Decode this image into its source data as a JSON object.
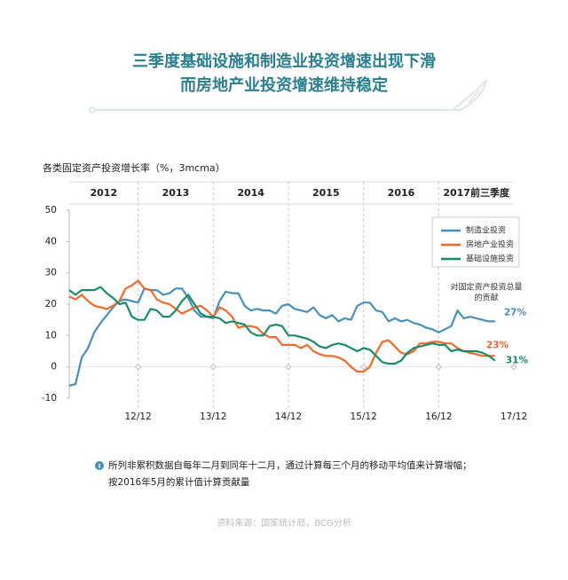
{
  "chart_data": {
    "type": "line",
    "title": "三季度基础设施和制造业投资增速出现下滑",
    "subtitle": "而房地产业投资增速维持稳定",
    "y_label": "各类固定资产投资增长率（%，3mcma）",
    "periods": [
      "2012",
      "2013",
      "2014",
      "2015",
      "2016",
      "2017前三季度"
    ],
    "x": [
      1,
      2,
      3,
      4,
      5,
      6,
      7,
      8,
      9,
      10,
      11,
      12,
      13,
      14,
      15,
      16,
      17,
      18,
      19,
      20,
      21,
      22,
      23,
      24,
      25,
      26,
      27,
      28,
      29,
      30,
      31,
      32,
      33,
      34,
      35,
      36,
      37,
      38,
      39,
      40,
      41,
      42,
      43,
      44,
      45,
      46,
      47,
      48,
      49,
      50,
      51,
      52,
      53,
      54,
      55,
      56,
      57,
      58,
      59,
      60,
      61,
      62,
      63,
      64,
      65,
      66,
      67,
      68,
      69
    ],
    "xlim": [
      1,
      72
    ],
    "xticks": [
      {
        "value": 12,
        "label": "12/12"
      },
      {
        "value": 24,
        "label": "13/12"
      },
      {
        "value": 36,
        "label": "14/12"
      },
      {
        "value": 48,
        "label": "15/12"
      },
      {
        "value": 60,
        "label": "16/12"
      },
      {
        "value": 72,
        "label": "17/12"
      }
    ],
    "ylim": [
      -10,
      50
    ],
    "yticks": [
      -10,
      0,
      10,
      20,
      30,
      40,
      50
    ],
    "grid": false,
    "legend": "upper right",
    "series": [
      {
        "name": "制造业投资",
        "color": "#4a8fb5",
        "end_label": "27%",
        "values": [
          -6,
          -5.5,
          3,
          6,
          11,
          14,
          16.5,
          19,
          21,
          21.5,
          21,
          20.5,
          25,
          24.5,
          24.5,
          23,
          23.5,
          25,
          25,
          22,
          18,
          16,
          16,
          15.5,
          21,
          24,
          23.5,
          23.5,
          19.5,
          18,
          18.5,
          18,
          18,
          17,
          19.5,
          20,
          18.5,
          18,
          17.5,
          19,
          16.5,
          15.5,
          16.5,
          14.5,
          15.5,
          15,
          19.5,
          20.5,
          20.5,
          18,
          17.5,
          14.5,
          15.5,
          14.5,
          15,
          14,
          13.5,
          12.5,
          12,
          11,
          12,
          13,
          18,
          15.5,
          16,
          15.5,
          15,
          14.5,
          14.5
        ]
      },
      {
        "name": "房地产业投资",
        "color": "#ee6a2f",
        "end_label": "23%",
        "values": [
          22.5,
          21.5,
          23,
          21,
          19.5,
          19,
          18.5,
          19.5,
          21,
          25,
          26,
          27.5,
          25,
          24.5,
          21.5,
          20.5,
          20,
          18.5,
          17,
          18,
          19,
          19.5,
          18,
          16,
          19,
          18,
          16,
          12.5,
          13,
          13,
          12.5,
          10.5,
          9.5,
          9.5,
          7,
          7,
          7,
          6,
          7,
          5,
          4,
          3.5,
          3.5,
          3,
          2,
          0,
          -1.5,
          -1.5,
          0,
          4.5,
          8,
          8.5,
          6.5,
          4.5,
          4,
          5,
          7.5,
          7.5,
          8,
          8,
          7.5,
          7.5,
          6,
          5,
          4.5,
          4,
          3.5,
          3.5,
          3.5
        ]
      },
      {
        "name": "基础设施投资",
        "color": "#1b8a6b",
        "end_label": "31%",
        "values": [
          24.5,
          23,
          24.5,
          24.5,
          24.5,
          25.5,
          23.5,
          22,
          20,
          20.5,
          16,
          15,
          15,
          18.5,
          18,
          16,
          16,
          18,
          21,
          23,
          20,
          17,
          16,
          16,
          15.5,
          14,
          14.5,
          14,
          13.5,
          11,
          10,
          10,
          13,
          13.5,
          13,
          10,
          10,
          9.5,
          9,
          8,
          6.5,
          6,
          7,
          7.5,
          7,
          6,
          5,
          6,
          5.5,
          3.5,
          1.5,
          1,
          1,
          2,
          4.5,
          6,
          6.5,
          7,
          7.5,
          7,
          7,
          5,
          5.5,
          5,
          5,
          5,
          4.5,
          3.5,
          2
        ]
      }
    ],
    "annotation_lines": [
      "对固定资产投资总量",
      "的贡献"
    ],
    "note_lines": [
      "所列非累积数据自每年二月到同年十二月，通过计算每三个月的移动平均值来计算增幅；",
      "按2016年5月的累计值计算贡献量"
    ],
    "source": "资料来源：国家统计局，BCG分析"
  }
}
